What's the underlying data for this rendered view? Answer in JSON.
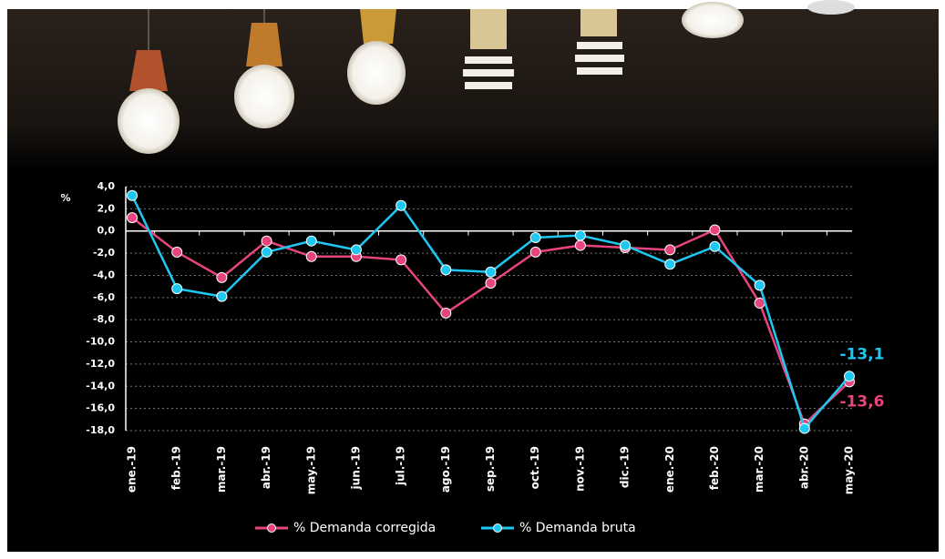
{
  "chart_data": {
    "type": "line",
    "y_label": "%",
    "categories": [
      "ene.-19",
      "feb.-19",
      "mar.-19",
      "abr.-19",
      "may.-19",
      "jun.-19",
      "jul.-19",
      "ago.-19",
      "sep.-19",
      "oct.-19",
      "nov.-19",
      "dic.-19",
      "ene.-20",
      "feb.-20",
      "mar.-20",
      "abr.-20",
      "may.-20"
    ],
    "series": [
      {
        "name": "% Demanda corregida",
        "color": "#e8447f",
        "values": [
          1.2,
          -1.9,
          -4.2,
          -0.9,
          -2.3,
          -2.3,
          -2.6,
          -7.4,
          -4.7,
          -1.9,
          -1.3,
          -1.5,
          -1.7,
          0.1,
          -6.5,
          -17.4,
          -13.6
        ],
        "value_labels": [
          null,
          null,
          null,
          null,
          null,
          null,
          null,
          null,
          null,
          null,
          null,
          null,
          null,
          null,
          null,
          null,
          "-13,6"
        ]
      },
      {
        "name": "% Demanda bruta",
        "color": "#1ec8f2",
        "values": [
          3.2,
          -5.2,
          -5.9,
          -1.9,
          -0.9,
          -1.7,
          2.3,
          -3.5,
          -3.7,
          -0.6,
          -0.4,
          -1.3,
          -3.0,
          -1.4,
          -4.9,
          -17.8,
          -13.1
        ],
        "value_labels": [
          null,
          null,
          null,
          null,
          null,
          null,
          null,
          null,
          null,
          null,
          null,
          null,
          null,
          null,
          null,
          null,
          "-13,1"
        ]
      }
    ],
    "ylim": [
      -18,
      4
    ],
    "yticks": [
      {
        "value": 4,
        "label": "4,0"
      },
      {
        "value": 2,
        "label": "2,0"
      },
      {
        "value": 0,
        "label": "0,0"
      },
      {
        "value": -2,
        "label": "-2,0"
      },
      {
        "value": -4,
        "label": "-4,0"
      },
      {
        "value": -6,
        "label": "-6,0"
      },
      {
        "value": -8,
        "label": "-8,0"
      },
      {
        "value": -10,
        "label": "-10,0"
      },
      {
        "value": -12,
        "label": "-12,0"
      },
      {
        "value": -14,
        "label": "-14,0"
      },
      {
        "value": -16,
        "label": "-16,0"
      },
      {
        "value": -18,
        "label": "-18,0"
      }
    ],
    "grid": true
  }
}
